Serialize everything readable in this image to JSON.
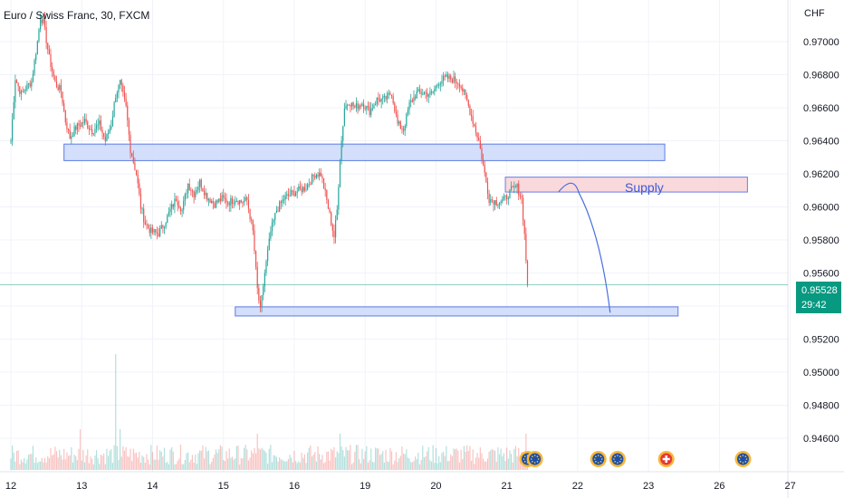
{
  "chart_title": "Euro / Swiss Franc, 30, FXCM",
  "currency": "CHF",
  "current_price": "0.95528",
  "countdown": "29:42",
  "supply_label": "Supply",
  "colors": {
    "up": "#26a69a",
    "down": "#ef5350",
    "zone_blue_fill": "#cfdcfb",
    "zone_blue_stroke": "#4c6fe0",
    "zone_red_fill": "#f9d5d9",
    "zone_red_stroke": "#5a6fe0",
    "price_line": "#089981",
    "projection": "#4a6fe0"
  },
  "chart_data": {
    "type": "candlestick",
    "title": "Euro / Swiss Franc, 30, FXCM",
    "ylabel": "CHF",
    "ylim": [
      0.9453,
      0.9712
    ],
    "y_ticks": [
      "0.97000",
      "0.96800",
      "0.96600",
      "0.96400",
      "0.96200",
      "0.96000",
      "0.95800",
      "0.95600",
      "0.95400",
      "0.95200",
      "0.95000",
      "0.94800",
      "0.94600"
    ],
    "y_tick_values": [
      0.97,
      0.968,
      0.966,
      0.964,
      0.962,
      0.96,
      0.958,
      0.956,
      0.954,
      0.952,
      0.95,
      0.948,
      0.946
    ],
    "x_ticks": [
      "12",
      "13",
      "14",
      "15",
      "16",
      "19",
      "20",
      "21",
      "22",
      "23",
      "26",
      "27"
    ],
    "x_tick_index": [
      0,
      48,
      96,
      144,
      192,
      240,
      288,
      336,
      384,
      432,
      480,
      528
    ],
    "current_price": 0.95528,
    "path_points": [
      [
        0,
        0.964
      ],
      [
        3,
        0.9678
      ],
      [
        7,
        0.9668
      ],
      [
        10,
        0.9672
      ],
      [
        14,
        0.9676
      ],
      [
        18,
        0.97
      ],
      [
        20,
        0.9715
      ],
      [
        22,
        0.9712
      ],
      [
        26,
        0.969
      ],
      [
        30,
        0.9675
      ],
      [
        34,
        0.967
      ],
      [
        37,
        0.9652
      ],
      [
        40,
        0.9642
      ],
      [
        44,
        0.9648
      ],
      [
        50,
        0.9652
      ],
      [
        55,
        0.9646
      ],
      [
        60,
        0.965
      ],
      [
        64,
        0.964
      ],
      [
        68,
        0.965
      ],
      [
        71,
        0.9668
      ],
      [
        74,
        0.9675
      ],
      [
        78,
        0.966
      ],
      [
        81,
        0.9635
      ],
      [
        85,
        0.962
      ],
      [
        88,
        0.96
      ],
      [
        91,
        0.959
      ],
      [
        95,
        0.9585
      ],
      [
        100,
        0.9584
      ],
      [
        104,
        0.959
      ],
      [
        108,
        0.9598
      ],
      [
        112,
        0.9605
      ],
      [
        116,
        0.9598
      ],
      [
        120,
        0.9614
      ],
      [
        124,
        0.9608
      ],
      [
        128,
        0.9615
      ],
      [
        133,
        0.9606
      ],
      [
        138,
        0.9602
      ],
      [
        143,
        0.9605
      ],
      [
        148,
        0.9603
      ],
      [
        152,
        0.9605
      ],
      [
        156,
        0.9603
      ],
      [
        160,
        0.9604
      ],
      [
        164,
        0.9585
      ],
      [
        167,
        0.955
      ],
      [
        169,
        0.9537
      ],
      [
        172,
        0.956
      ],
      [
        176,
        0.9585
      ],
      [
        180,
        0.9598
      ],
      [
        185,
        0.9605
      ],
      [
        190,
        0.9608
      ],
      [
        195,
        0.961
      ],
      [
        200,
        0.9612
      ],
      [
        206,
        0.962
      ],
      [
        210,
        0.962
      ],
      [
        213,
        0.9608
      ],
      [
        216,
        0.9595
      ],
      [
        219,
        0.9582
      ],
      [
        221,
        0.9598
      ],
      [
        223,
        0.963
      ],
      [
        226,
        0.966
      ],
      [
        229,
        0.9664
      ],
      [
        233,
        0.966
      ],
      [
        238,
        0.9663
      ],
      [
        243,
        0.9658
      ],
      [
        248,
        0.9665
      ],
      [
        253,
        0.9665
      ],
      [
        258,
        0.9669
      ],
      [
        262,
        0.965
      ],
      [
        266,
        0.9647
      ],
      [
        270,
        0.9662
      ],
      [
        275,
        0.9669
      ],
      [
        280,
        0.9669
      ],
      [
        285,
        0.9668
      ],
      [
        290,
        0.9676
      ],
      [
        295,
        0.9678
      ],
      [
        300,
        0.9677
      ],
      [
        304,
        0.9675
      ],
      [
        309,
        0.9664
      ],
      [
        313,
        0.9652
      ],
      [
        317,
        0.964
      ],
      [
        320,
        0.9625
      ],
      [
        324,
        0.9605
      ],
      [
        329,
        0.9603
      ],
      [
        334,
        0.9604
      ],
      [
        339,
        0.961
      ],
      [
        343,
        0.9612
      ],
      [
        346,
        0.9605
      ],
      [
        348,
        0.9583
      ],
      [
        350,
        0.9553
      ]
    ],
    "zones": [
      {
        "name": "support-upper",
        "x_start": 36,
        "x_end": 443,
        "y_top": 0.9638,
        "y_bottom": 0.9628
      },
      {
        "name": "supply",
        "x_start": 335,
        "x_end": 499,
        "y_top": 0.9618,
        "y_bottom": 0.9609,
        "label": "Supply"
      },
      {
        "name": "support-lower",
        "x_start": 152,
        "x_end": 452,
        "y_top": 0.95395,
        "y_bottom": 0.9534
      }
    ],
    "projection": {
      "start": [
        371,
        0.9609
      ],
      "peak": [
        381,
        0.9611
      ],
      "end": [
        406,
        0.9536
      ]
    },
    "events": [
      {
        "icon": "eu-flag-icon",
        "x": 350
      },
      {
        "icon": "eu-flag-icon",
        "x": 355
      },
      {
        "icon": "eu-flag-icon",
        "x": 398
      },
      {
        "icon": "eu-flag-icon",
        "x": 411
      },
      {
        "icon": "swiss-flag-icon",
        "x": 444
      },
      {
        "icon": "eu-flag-icon",
        "x": 496
      }
    ]
  }
}
